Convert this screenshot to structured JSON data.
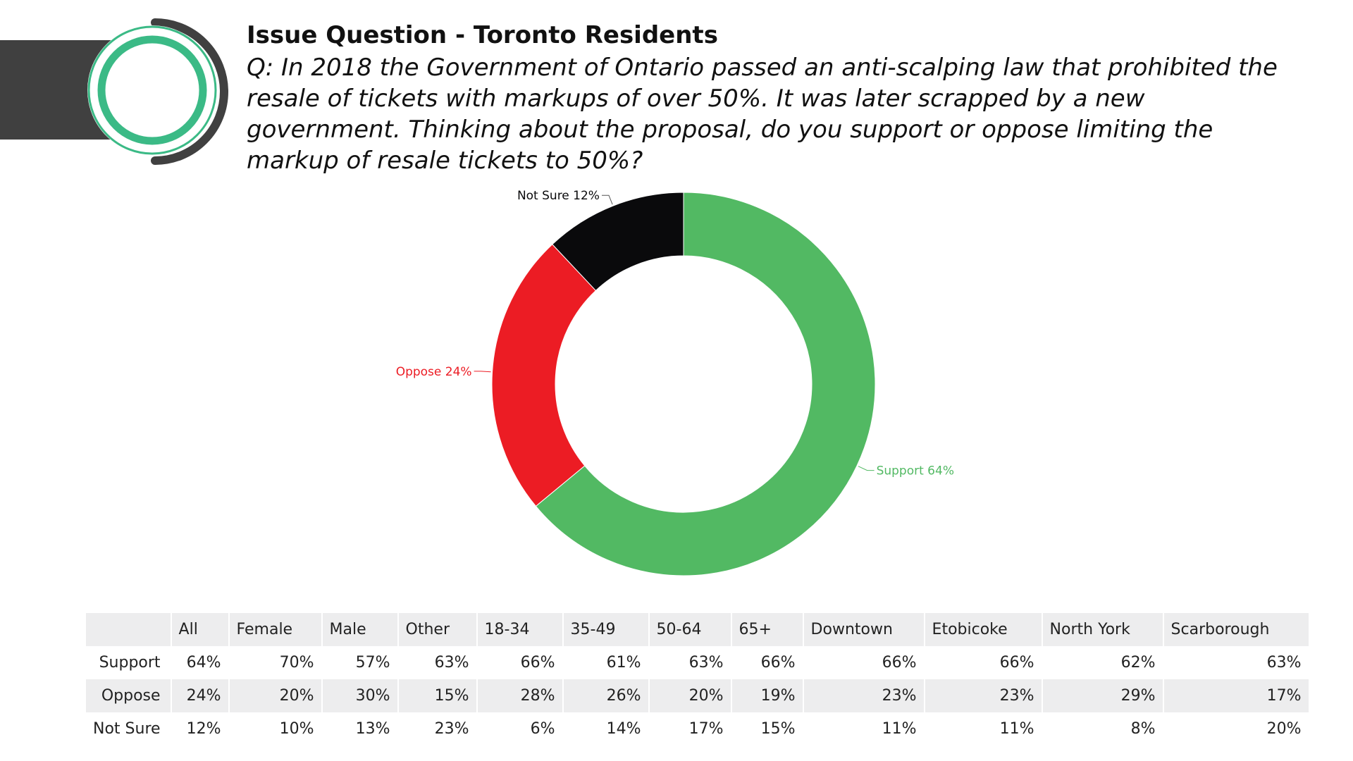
{
  "title": "Issue Question - Toronto Residents",
  "question": "Q: In 2018 the Government of Ontario passed an anti-scalping law that prohibited the resale of tickets with markups of over 50%. It was later scrapped by a new government. Thinking about the proposal, do you support or oppose limiting the markup of resale tickets to 50%?",
  "colors": {
    "support": "#52b963",
    "oppose": "#ec1c24",
    "not_sure": "#0a0a0c",
    "logo_green": "#3bba86",
    "logo_dark": "#404040"
  },
  "chart_data": {
    "type": "pie",
    "variant": "donut",
    "slices": [
      {
        "label": "Support 64%",
        "value": 64,
        "color": "#52b963"
      },
      {
        "label": "Oppose 24%",
        "value": 24,
        "color": "#ec1c24"
      },
      {
        "label": "Not Sure 12%",
        "value": 12,
        "color": "#0a0a0c"
      }
    ]
  },
  "table": {
    "columns": [
      "All",
      "Female",
      "Male",
      "Other",
      "18-34",
      "35-49",
      "50-64",
      "65+",
      "Downtown",
      "Etobicoke",
      "North York",
      "Scarborough"
    ],
    "rows": [
      {
        "label": "Support",
        "values": [
          "64%",
          "70%",
          "57%",
          "63%",
          "66%",
          "61%",
          "63%",
          "66%",
          "66%",
          "66%",
          "62%",
          "63%"
        ]
      },
      {
        "label": "Oppose",
        "values": [
          "24%",
          "20%",
          "30%",
          "15%",
          "28%",
          "26%",
          "20%",
          "19%",
          "23%",
          "23%",
          "29%",
          "17%"
        ]
      },
      {
        "label": "Not Sure",
        "values": [
          "12%",
          "10%",
          "13%",
          "23%",
          "6%",
          "14%",
          "17%",
          "15%",
          "11%",
          "11%",
          "8%",
          "20%"
        ]
      }
    ]
  }
}
